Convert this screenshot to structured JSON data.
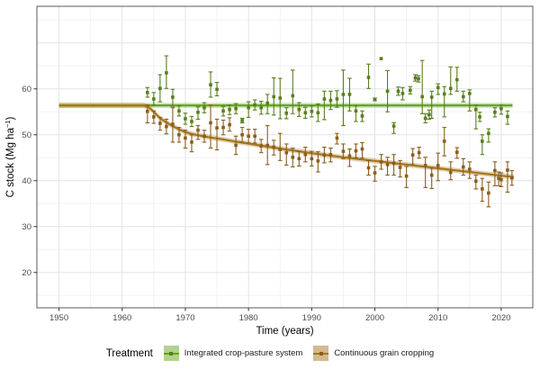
{
  "chart_data": {
    "type": "scatter",
    "title": "",
    "xlabel": "Time (years)",
    "ylabel": "C stock (Mg ha⁻¹)",
    "ylabel_parts": {
      "main": "C stock (Mg ha",
      "sup": "−1",
      "close": ")"
    },
    "xlim": [
      1946.5,
      2025.0
    ],
    "ylim": [
      12.3,
      78.0
    ],
    "x_ticks": [
      1950,
      1960,
      1970,
      1980,
      1990,
      2000,
      2010,
      2020
    ],
    "x_minor": [
      1955,
      1965,
      1975,
      1985,
      1995,
      2005,
      2015,
      2025
    ],
    "y_ticks": [
      20,
      30,
      40,
      50,
      60
    ],
    "y_grid_extra": [
      70
    ],
    "y_minor": [
      15,
      25,
      35,
      45,
      55,
      65,
      75
    ],
    "grid": true,
    "legend_position": "bottom",
    "series": [
      {
        "name": "Integrated crop-pasture system",
        "line_color": "#66a61e",
        "point_color": "#587f1e",
        "ribbon_color": "rgba(102,166,30,0.33)",
        "ribbon_halfwidth": 0.55,
        "line": [
          [
            1950,
            56.4
          ],
          [
            2021.8,
            56.4
          ]
        ],
        "points": [
          [
            1964,
            59.2,
            58.2,
            60.3
          ],
          [
            1965,
            57.8,
            56.5,
            59.2
          ],
          [
            1966,
            60.1,
            57.2,
            63.1
          ],
          [
            1967,
            63.5,
            60.1,
            67.2
          ],
          [
            1968,
            58.2,
            56.2,
            59.9
          ],
          [
            1969,
            55.2,
            54.1,
            56.3
          ],
          [
            1970,
            53.5,
            52.3,
            54.7
          ],
          [
            1971,
            52.9,
            51.8,
            54.0
          ],
          [
            1972,
            54.9,
            53.4,
            56.1
          ],
          [
            1973,
            55.9,
            54.8,
            57.0
          ],
          [
            1974,
            60.9,
            58.2,
            63.7
          ],
          [
            1975,
            59.9,
            58.5,
            61.4
          ],
          [
            1976,
            55.2,
            54.1,
            56.2
          ],
          [
            1977,
            55.5,
            54.4,
            56.5
          ],
          [
            1978,
            55.7,
            54.6,
            56.8
          ],
          [
            1979,
            53.1,
            52.6,
            53.6
          ],
          [
            1980,
            55.9,
            53.8,
            57.2
          ],
          [
            1981,
            56.5,
            55.4,
            57.6
          ],
          [
            1982,
            55.9,
            54.5,
            57.3
          ],
          [
            1983,
            56.9,
            54.6,
            58.8
          ],
          [
            1984,
            58.3,
            54.3,
            62.4
          ],
          [
            1985,
            58.0,
            53.5,
            62.3
          ],
          [
            1986,
            54.7,
            53.5,
            55.9
          ],
          [
            1987,
            58.5,
            54.6,
            64.1
          ],
          [
            1988,
            55.5,
            54.0,
            57.0
          ],
          [
            1989,
            54.8,
            53.6,
            56.0
          ],
          [
            1990,
            55.1,
            53.9,
            56.3
          ],
          [
            1991,
            54.8,
            52.9,
            56.7
          ],
          [
            1992,
            57.8,
            53.3,
            59.5
          ],
          [
            1993,
            57.5,
            55.5,
            59.5
          ],
          [
            1994,
            57.8,
            56.0,
            59.6
          ],
          [
            1995,
            58.8,
            52.0,
            64.1
          ],
          [
            1996,
            58.8,
            55.2,
            62.3
          ],
          [
            1997,
            55.2,
            52.9,
            56.3
          ],
          [
            1998,
            54.1,
            52.9,
            55.2
          ],
          [
            1999,
            62.5,
            60.1,
            65.4
          ],
          [
            2000,
            57.7,
            57.4,
            58.0
          ],
          [
            2001,
            66.6,
            66.6,
            66.6
          ],
          [
            2002,
            59.5,
            55.0,
            64.0
          ],
          [
            2003,
            51.9,
            50.3,
            52.6
          ],
          [
            2003.7,
            59.5,
            58.6,
            60.4
          ],
          [
            2004.4,
            59.0,
            57.6,
            60.3
          ],
          [
            2005.6,
            59.7,
            58.9,
            60.5
          ],
          [
            2006.4,
            62.4,
            61.7,
            63.1
          ],
          [
            2006.9,
            62.2,
            61.5,
            62.9
          ],
          [
            2007.5,
            58.3,
            54.6,
            66.2
          ],
          [
            2008,
            53.6,
            52.6,
            54.6
          ],
          [
            2008.6,
            54.4,
            53.4,
            55.4
          ],
          [
            2009,
            58.2,
            53.6,
            59.5
          ],
          [
            2010,
            60.3,
            58.8,
            61.1
          ],
          [
            2011,
            58.9,
            53.9,
            60.5
          ],
          [
            2012,
            60.1,
            58.8,
            64.8
          ],
          [
            2013,
            62.0,
            59.5,
            64.7
          ],
          [
            2014,
            58.3,
            57.2,
            59.5
          ],
          [
            2015,
            59.0,
            55.2,
            59.8
          ],
          [
            2016,
            55.5,
            51.3,
            56.5
          ],
          [
            2016.6,
            53.9,
            52.9,
            54.9
          ],
          [
            2017,
            48.6,
            45.7,
            50.0
          ],
          [
            2018,
            50.3,
            48.4,
            51.3
          ],
          [
            2019,
            54.9,
            53.9,
            55.9
          ],
          [
            2020,
            55.7,
            54.5,
            56.5
          ],
          [
            2021,
            54.0,
            52.3,
            55.2
          ]
        ]
      },
      {
        "name": "Continuous grain cropping",
        "line_color": "#a6761d",
        "point_color": "#8a5f1e",
        "ribbon_color": "rgba(166,118,29,0.33)",
        "ribbon_halfwidth": 0.55,
        "line": [
          [
            1950,
            56.4
          ],
          [
            1963.4,
            56.4
          ],
          [
            1964.2,
            56.0
          ],
          [
            1965,
            55.0
          ],
          [
            1966,
            53.6
          ],
          [
            1967,
            52.7
          ],
          [
            1968,
            51.9
          ],
          [
            1969,
            51.2
          ],
          [
            1970,
            50.6
          ],
          [
            1971,
            50.2
          ],
          [
            1972,
            49.9
          ],
          [
            1974,
            49.4
          ],
          [
            1976,
            49.0
          ],
          [
            1978,
            48.5
          ],
          [
            1980,
            48.1
          ],
          [
            1983,
            47.4
          ],
          [
            1986,
            46.8
          ],
          [
            1990,
            46.0
          ],
          [
            1995,
            45.1
          ],
          [
            2000,
            44.3
          ],
          [
            2005,
            43.5
          ],
          [
            2010,
            42.7
          ],
          [
            2015,
            41.9
          ],
          [
            2020,
            41.1
          ],
          [
            2022,
            40.8
          ]
        ],
        "points": [
          [
            1964,
            55.1,
            52.6,
            56.5
          ],
          [
            1965,
            53.9,
            52.5,
            55.2
          ],
          [
            1966,
            52.5,
            51.0,
            53.8
          ],
          [
            1967,
            51.8,
            50.2,
            53.4
          ],
          [
            1968,
            52.3,
            48.4,
            55.9
          ],
          [
            1969,
            50.0,
            48.4,
            51.6
          ],
          [
            1970,
            49.3,
            47.1,
            51.0
          ],
          [
            1971,
            48.4,
            46.3,
            50.0
          ],
          [
            1972,
            51.0,
            49.0,
            52.0
          ],
          [
            1973,
            49.7,
            48.4,
            51.0
          ],
          [
            1974,
            52.6,
            47.1,
            56.5
          ],
          [
            1975,
            51.5,
            46.7,
            53.4
          ],
          [
            1976,
            51.6,
            50.0,
            53.2
          ],
          [
            1977,
            52.2,
            50.8,
            53.7
          ],
          [
            1978,
            47.7,
            45.7,
            49.7
          ],
          [
            1979,
            50.0,
            48.4,
            51.6
          ],
          [
            1980,
            49.7,
            48.2,
            51.2
          ],
          [
            1981,
            49.7,
            48.2,
            51.2
          ],
          [
            1982,
            47.6,
            46.1,
            49.0
          ],
          [
            1983,
            47.7,
            43.5,
            52.0
          ],
          [
            1984,
            47.3,
            45.6,
            48.8
          ],
          [
            1985,
            46.8,
            44.4,
            50.3
          ],
          [
            1986,
            46.1,
            43.4,
            48.0
          ],
          [
            1987,
            45.1,
            43.0,
            47.1
          ],
          [
            1988,
            44.8,
            43.2,
            46.4
          ],
          [
            1989,
            45.7,
            44.1,
            47.3
          ],
          [
            1990,
            44.8,
            43.2,
            46.4
          ],
          [
            1991,
            44.3,
            41.9,
            46.3
          ],
          [
            1992,
            45.6,
            43.9,
            47.3
          ],
          [
            1993,
            45.7,
            44.1,
            47.1
          ],
          [
            1994,
            49.3,
            48.0,
            50.3
          ],
          [
            1995,
            46.4,
            44.8,
            48.0
          ],
          [
            1996,
            45.4,
            43.1,
            46.9
          ],
          [
            1997,
            46.5,
            45.0,
            48.0
          ],
          [
            1998,
            46.9,
            44.9,
            48.3
          ],
          [
            1999,
            42.8,
            41.2,
            44.4
          ],
          [
            2000,
            41.7,
            39.9,
            43.1
          ],
          [
            2001,
            44.1,
            42.5,
            45.7
          ],
          [
            2002,
            43.5,
            41.2,
            45.1
          ],
          [
            2003,
            43.8,
            41.2,
            45.7
          ],
          [
            2004,
            42.9,
            40.8,
            44.4
          ],
          [
            2005,
            41.0,
            38.5,
            43.1
          ],
          [
            2006,
            45.6,
            43.5,
            47.0
          ],
          [
            2007,
            46.1,
            44.9,
            47.3
          ],
          [
            2008,
            43.3,
            38.5,
            45.1
          ],
          [
            2009,
            41.2,
            38.3,
            42.7
          ],
          [
            2010,
            43.3,
            40.0,
            46.0
          ],
          [
            2011,
            48.6,
            45.4,
            51.6
          ],
          [
            2012,
            41.8,
            40.2,
            44.1
          ],
          [
            2013,
            46.2,
            44.9,
            47.2
          ],
          [
            2014,
            43.0,
            41.2,
            44.8
          ],
          [
            2015,
            42.5,
            40.5,
            44.1
          ],
          [
            2016,
            39.9,
            38.2,
            41.2
          ],
          [
            2017,
            38.2,
            35.5,
            40.5
          ],
          [
            2018,
            37.3,
            34.3,
            39.7
          ],
          [
            2019,
            42.2,
            38.9,
            44.1
          ],
          [
            2019.6,
            40.5,
            38.9,
            41.9
          ],
          [
            2020,
            40.2,
            38.7,
            41.7
          ],
          [
            2021,
            42.3,
            37.5,
            44.1
          ],
          [
            2021.7,
            40.6,
            39.0,
            42.2
          ]
        ]
      }
    ]
  },
  "legend": {
    "title": "Treatment",
    "items": [
      {
        "label": "Integrated crop-pasture system"
      },
      {
        "label": "Continuous grain cropping"
      }
    ]
  },
  "colors": {
    "panel_border": "#595959",
    "grid_major": "#e4e4e4",
    "grid_minor": "#f2f2f2",
    "tick_mark": "#333333",
    "tick_label": "#4d4d4d"
  }
}
